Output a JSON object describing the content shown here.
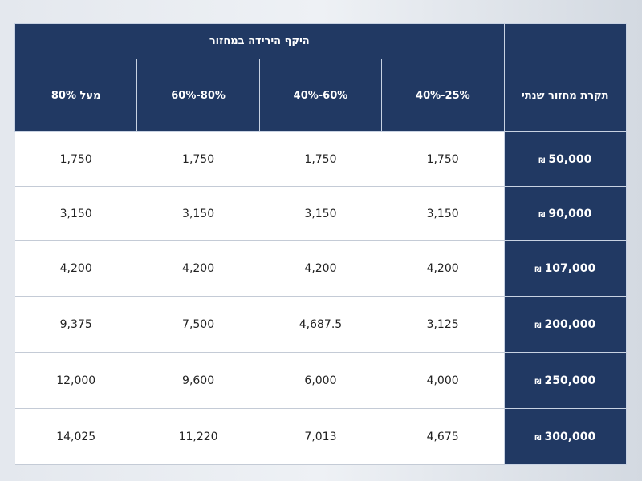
{
  "table": {
    "group_header": "היקף הירידה במחזור",
    "row_header_title": "תקרת מחזור שנתי",
    "columns": [
      "40%-25%",
      "40%-60%",
      "60%-80%",
      "מעל 80%"
    ],
    "currency_symbol": "₪",
    "rows": [
      {
        "cap": "50,000",
        "values": [
          "1,750",
          "1,750",
          "1,750",
          "1,750"
        ]
      },
      {
        "cap": "90,000",
        "values": [
          "3,150",
          "3,150",
          "3,150",
          "3,150"
        ]
      },
      {
        "cap": "107,000",
        "values": [
          "4,200",
          "4,200",
          "4,200",
          "4,200"
        ]
      },
      {
        "cap": "200,000",
        "values": [
          "3,125",
          "4,687.5",
          "7,500",
          "9,375"
        ]
      },
      {
        "cap": "250,000",
        "values": [
          "4,000",
          "6,000",
          "9,600",
          "12,000"
        ]
      },
      {
        "cap": "300,000",
        "values": [
          "4,675",
          "7,013",
          "11,220",
          "14,025"
        ]
      }
    ]
  },
  "colors": {
    "header_bg": "#213963",
    "header_text": "#ffffff",
    "cell_bg": "#ffffff"
  }
}
